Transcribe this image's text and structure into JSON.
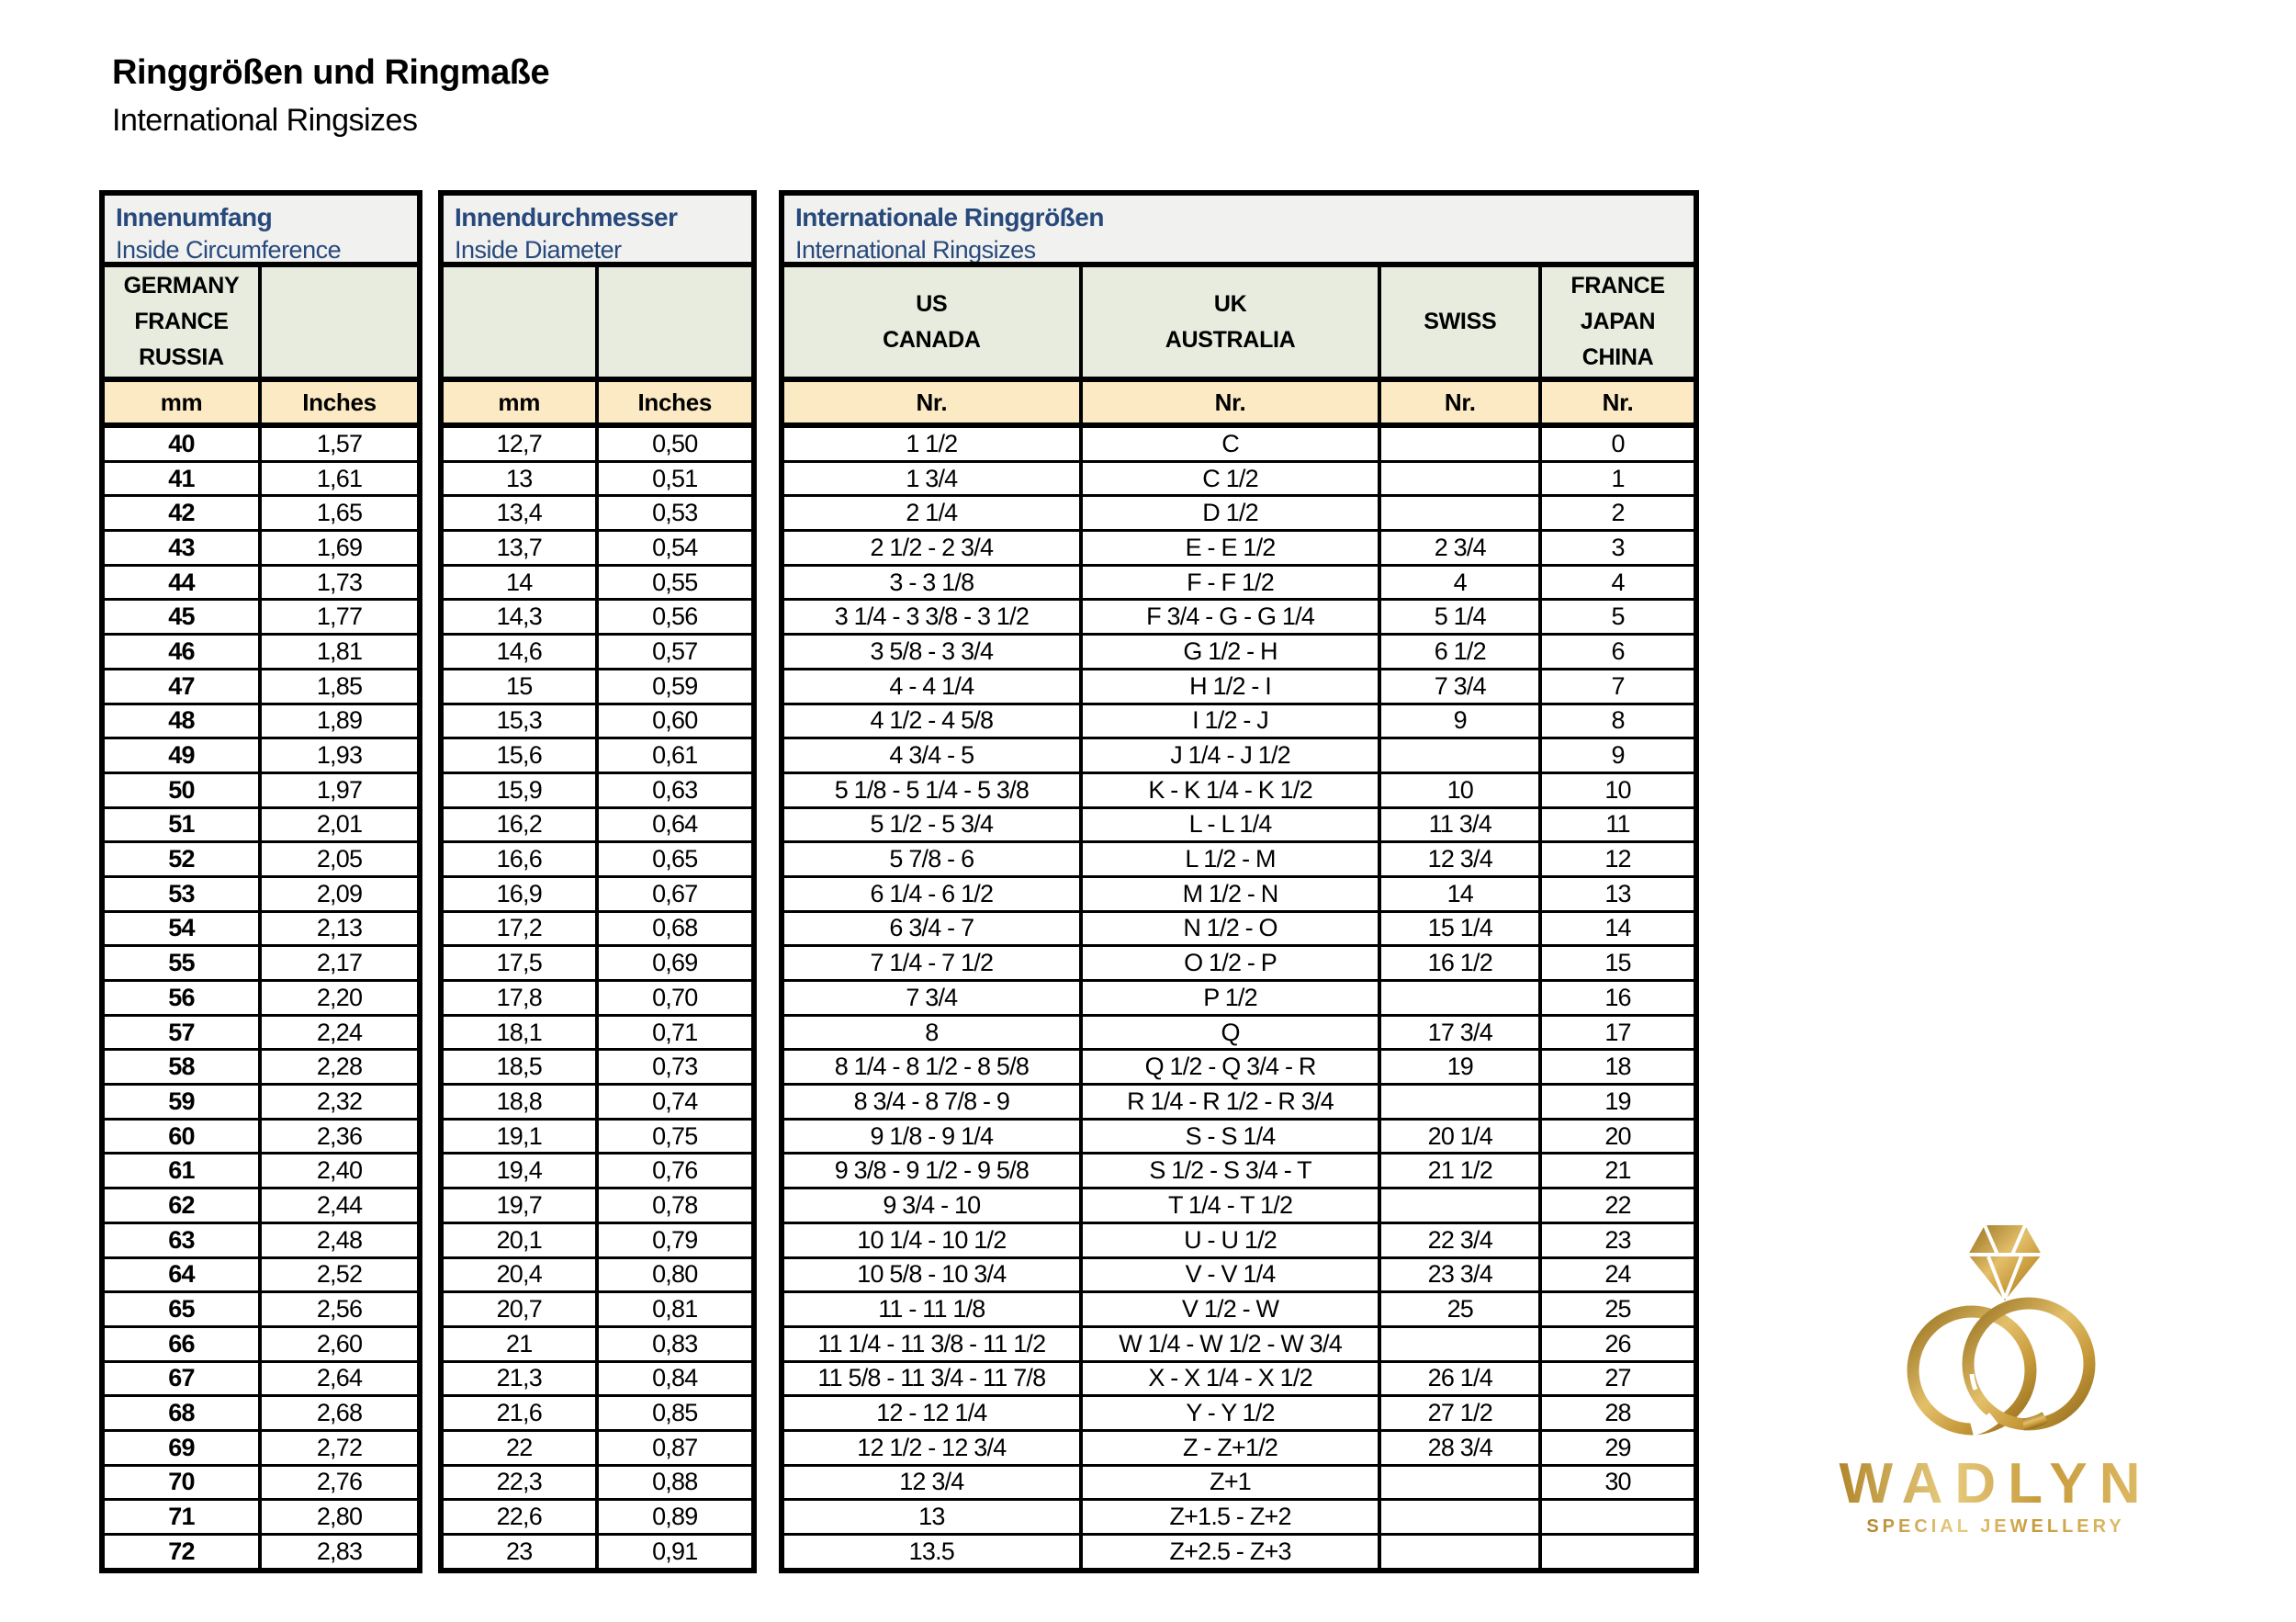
{
  "page": {
    "title_de": "Ringgrößen und Ringmaße",
    "title_en": "International Ringsizes"
  },
  "colors": {
    "caption_bg": "#f1f1ef",
    "group_header_bg": "#e7ecdf",
    "unit_header_bg": "#fbeac3",
    "caption_text": "#27497c",
    "border": "#000000",
    "logo_gold_dark": "#96701e",
    "logo_gold_mid": "#c79a3a",
    "logo_gold_light": "#ecd07f"
  },
  "tables": {
    "circumference": {
      "title_de": "Innenumfang",
      "title_en": "Inside Circumference",
      "group_headers": [
        [
          "GERMANY",
          "FRANCE",
          "RUSSIA"
        ],
        [
          ""
        ]
      ],
      "col_headers": [
        "mm",
        "Inches"
      ],
      "rows": [
        [
          "40",
          "1,57"
        ],
        [
          "41",
          "1,61"
        ],
        [
          "42",
          "1,65"
        ],
        [
          "43",
          "1,69"
        ],
        [
          "44",
          "1,73"
        ],
        [
          "45",
          "1,77"
        ],
        [
          "46",
          "1,81"
        ],
        [
          "47",
          "1,85"
        ],
        [
          "48",
          "1,89"
        ],
        [
          "49",
          "1,93"
        ],
        [
          "50",
          "1,97"
        ],
        [
          "51",
          "2,01"
        ],
        [
          "52",
          "2,05"
        ],
        [
          "53",
          "2,09"
        ],
        [
          "54",
          "2,13"
        ],
        [
          "55",
          "2,17"
        ],
        [
          "56",
          "2,20"
        ],
        [
          "57",
          "2,24"
        ],
        [
          "58",
          "2,28"
        ],
        [
          "59",
          "2,32"
        ],
        [
          "60",
          "2,36"
        ],
        [
          "61",
          "2,40"
        ],
        [
          "62",
          "2,44"
        ],
        [
          "63",
          "2,48"
        ],
        [
          "64",
          "2,52"
        ],
        [
          "65",
          "2,56"
        ],
        [
          "66",
          "2,60"
        ],
        [
          "67",
          "2,64"
        ],
        [
          "68",
          "2,68"
        ],
        [
          "69",
          "2,72"
        ],
        [
          "70",
          "2,76"
        ],
        [
          "71",
          "2,80"
        ],
        [
          "72",
          "2,83"
        ]
      ]
    },
    "diameter": {
      "title_de": "Innendurchmesser",
      "title_en": "Inside Diameter",
      "group_headers": [
        [
          ""
        ],
        [
          ""
        ]
      ],
      "col_headers": [
        "mm",
        "Inches"
      ],
      "rows": [
        [
          "12,7",
          "0,50"
        ],
        [
          "13",
          "0,51"
        ],
        [
          "13,4",
          "0,53"
        ],
        [
          "13,7",
          "0,54"
        ],
        [
          "14",
          "0,55"
        ],
        [
          "14,3",
          "0,56"
        ],
        [
          "14,6",
          "0,57"
        ],
        [
          "15",
          "0,59"
        ],
        [
          "15,3",
          "0,60"
        ],
        [
          "15,6",
          "0,61"
        ],
        [
          "15,9",
          "0,63"
        ],
        [
          "16,2",
          "0,64"
        ],
        [
          "16,6",
          "0,65"
        ],
        [
          "16,9",
          "0,67"
        ],
        [
          "17,2",
          "0,68"
        ],
        [
          "17,5",
          "0,69"
        ],
        [
          "17,8",
          "0,70"
        ],
        [
          "18,1",
          "0,71"
        ],
        [
          "18,5",
          "0,73"
        ],
        [
          "18,8",
          "0,74"
        ],
        [
          "19,1",
          "0,75"
        ],
        [
          "19,4",
          "0,76"
        ],
        [
          "19,7",
          "0,78"
        ],
        [
          "20,1",
          "0,79"
        ],
        [
          "20,4",
          "0,80"
        ],
        [
          "20,7",
          "0,81"
        ],
        [
          "21",
          "0,83"
        ],
        [
          "21,3",
          "0,84"
        ],
        [
          "21,6",
          "0,85"
        ],
        [
          "22",
          "0,87"
        ],
        [
          "22,3",
          "0,88"
        ],
        [
          "22,6",
          "0,89"
        ],
        [
          "23",
          "0,91"
        ]
      ]
    },
    "international": {
      "title_de": "Internationale Ringgrößen",
      "title_en": "International Ringsizes",
      "group_headers": [
        [
          "US",
          "CANADA"
        ],
        [
          "UK",
          "AUSTRALIA"
        ],
        [
          "SWISS"
        ],
        [
          "FRANCE",
          "JAPAN",
          "CHINA"
        ]
      ],
      "col_headers": [
        "Nr.",
        "Nr.",
        "Nr.",
        "Nr."
      ],
      "rows": [
        [
          "1 1/2",
          "C",
          "",
          "0"
        ],
        [
          "1 3/4",
          "C 1/2",
          "",
          "1"
        ],
        [
          "2 1/4",
          "D 1/2",
          "",
          "2"
        ],
        [
          "2 1/2 - 2 3/4",
          "E - E 1/2",
          "2 3/4",
          "3"
        ],
        [
          "3 - 3 1/8",
          "F - F 1/2",
          "4",
          "4"
        ],
        [
          "3 1/4 - 3 3/8 - 3 1/2",
          "F 3/4 - G - G 1/4",
          "5 1/4",
          "5"
        ],
        [
          "3 5/8 - 3 3/4",
          "G 1/2 - H",
          "6 1/2",
          "6"
        ],
        [
          "4 - 4 1/4",
          "H 1/2 - I",
          "7 3/4",
          "7"
        ],
        [
          "4 1/2 - 4 5/8",
          "I 1/2 - J",
          "9",
          "8"
        ],
        [
          "4 3/4 - 5",
          "J 1/4 - J 1/2",
          "",
          "9"
        ],
        [
          "5 1/8 - 5 1/4 - 5 3/8",
          "K - K 1/4 - K 1/2",
          "10",
          "10"
        ],
        [
          "5 1/2 - 5 3/4",
          "L - L 1/4",
          "11 3/4",
          "11"
        ],
        [
          "5 7/8 - 6",
          "L 1/2 - M",
          "12 3/4",
          "12"
        ],
        [
          "6 1/4 - 6 1/2",
          "M 1/2 - N",
          "14",
          "13"
        ],
        [
          "6 3/4 - 7",
          "N 1/2 - O",
          "15 1/4",
          "14"
        ],
        [
          "7 1/4 - 7 1/2",
          "O 1/2 - P",
          "16 1/2",
          "15"
        ],
        [
          "7 3/4",
          "P 1/2",
          "",
          "16"
        ],
        [
          "8",
          "Q",
          "17 3/4",
          "17"
        ],
        [
          "8 1/4 - 8 1/2 - 8 5/8",
          "Q 1/2 - Q 3/4 - R",
          "19",
          "18"
        ],
        [
          "8 3/4 - 8 7/8 - 9",
          "R 1/4 - R 1/2 - R 3/4",
          "",
          "19"
        ],
        [
          "9 1/8 - 9 1/4",
          "S - S 1/4",
          "20 1/4",
          "20"
        ],
        [
          "9 3/8 - 9 1/2 - 9 5/8",
          "S 1/2 - S 3/4 - T",
          "21 1/2",
          "21"
        ],
        [
          "9 3/4 - 10",
          "T 1/4 - T 1/2",
          "",
          "22"
        ],
        [
          "10 1/4 - 10 1/2",
          "U - U 1/2",
          "22 3/4",
          "23"
        ],
        [
          "10 5/8 - 10 3/4",
          "V - V 1/4",
          "23 3/4",
          "24"
        ],
        [
          "11 - 11 1/8",
          "V 1/2 - W",
          "25",
          "25"
        ],
        [
          "11 1/4 - 11 3/8 - 11 1/2",
          "W 1/4 - W 1/2 - W 3/4",
          "",
          "26"
        ],
        [
          "11 5/8 - 11 3/4 - 11 7/8",
          "X - X 1/4 - X 1/2",
          "26 1/4",
          "27"
        ],
        [
          "12 - 12 1/4",
          "Y - Y 1/2",
          "27 1/2",
          "28"
        ],
        [
          "12 1/2 - 12 3/4",
          "Z - Z+1/2",
          "28 3/4",
          "29"
        ],
        [
          "12 3/4",
          "Z+1",
          "",
          "30"
        ],
        [
          "13",
          "Z+1.5 - Z+2",
          "",
          ""
        ],
        [
          "13.5",
          "Z+2.5 - Z+3",
          "",
          ""
        ]
      ]
    }
  },
  "logo": {
    "brand": "WADLYN",
    "tagline": "SPECIAL JEWELLERY"
  }
}
